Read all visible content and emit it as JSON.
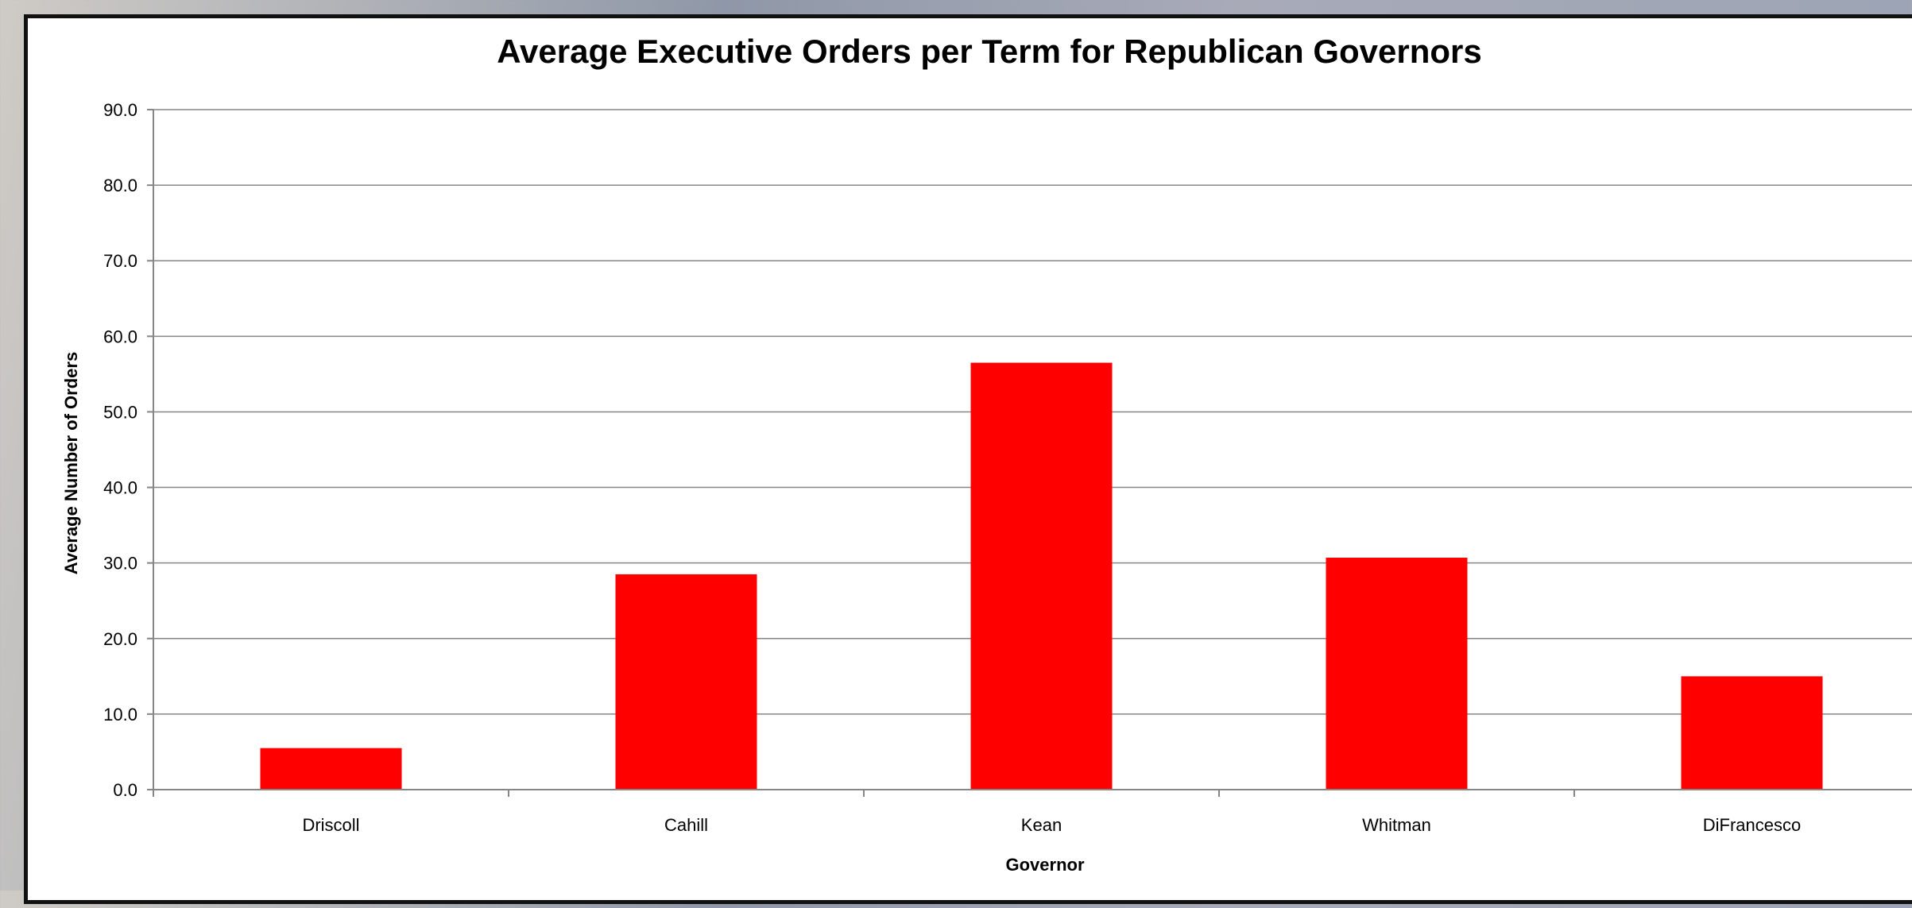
{
  "chart_data": {
    "type": "bar",
    "title": "Average Executive Orders per Term for Republican Governors",
    "xlabel": "Governor",
    "ylabel": "Average Number of Orders",
    "categories": [
      "Driscoll",
      "Cahill",
      "Kean",
      "Whitman",
      "DiFrancesco"
    ],
    "values": [
      5.5,
      28.5,
      56.5,
      30.7,
      15.0
    ],
    "ylim": [
      0,
      90
    ],
    "yticks": [
      "0.0",
      "10.0",
      "20.0",
      "30.0",
      "40.0",
      "50.0",
      "60.0",
      "70.0",
      "80.0",
      "90.0"
    ],
    "grid": true,
    "legend": "none",
    "bar_color": "#ff0000"
  }
}
